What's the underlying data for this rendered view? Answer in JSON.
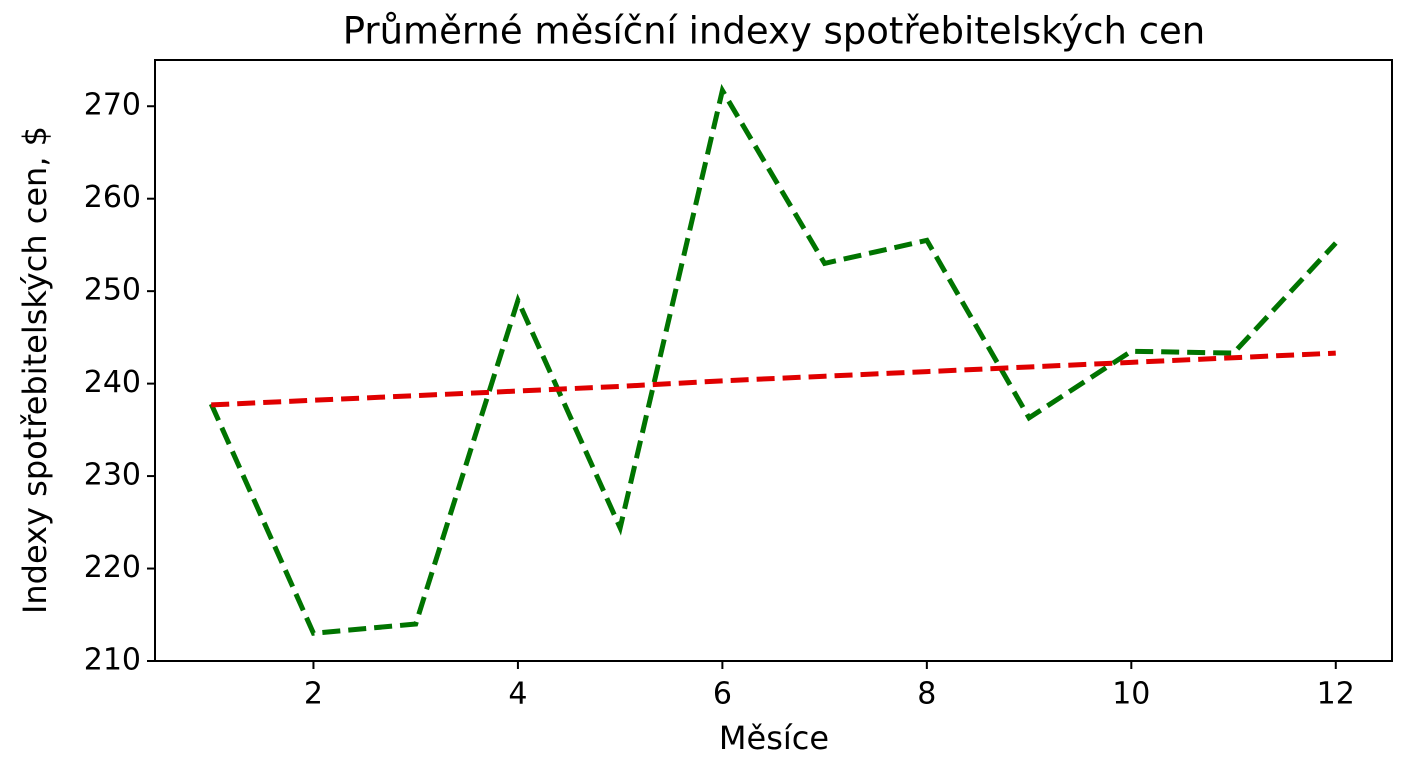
{
  "chart_data": {
    "type": "line",
    "title": "Průměrné měsíční indexy spotřebitelských cen",
    "x_label": "Měsíce",
    "y_label": "Indexy spotřebitelských cen, $",
    "x": [
      1,
      2,
      3,
      4,
      5,
      6,
      7,
      8,
      9,
      10,
      11,
      12
    ],
    "series": [
      {
        "color": "#007400",
        "line_style": "dashed",
        "values": [
          237.8,
          213.0,
          214.0,
          249.0,
          224.4,
          271.7,
          253.0,
          255.5,
          236.3,
          243.5,
          243.3,
          255.2
        ]
      },
      {
        "color": "#e00000",
        "line_style": "dashed",
        "values": [
          237.7,
          238.2,
          238.7,
          239.2,
          239.7,
          240.3,
          240.8,
          241.3,
          241.8,
          242.3,
          242.8,
          243.3
        ]
      }
    ],
    "xlim": [
      0.45,
      12.55
    ],
    "ylim": [
      210,
      275
    ],
    "xticks": [
      2,
      4,
      6,
      8,
      10,
      12
    ],
    "yticks": [
      210,
      220,
      230,
      240,
      250,
      260,
      270
    ],
    "grid": false
  }
}
